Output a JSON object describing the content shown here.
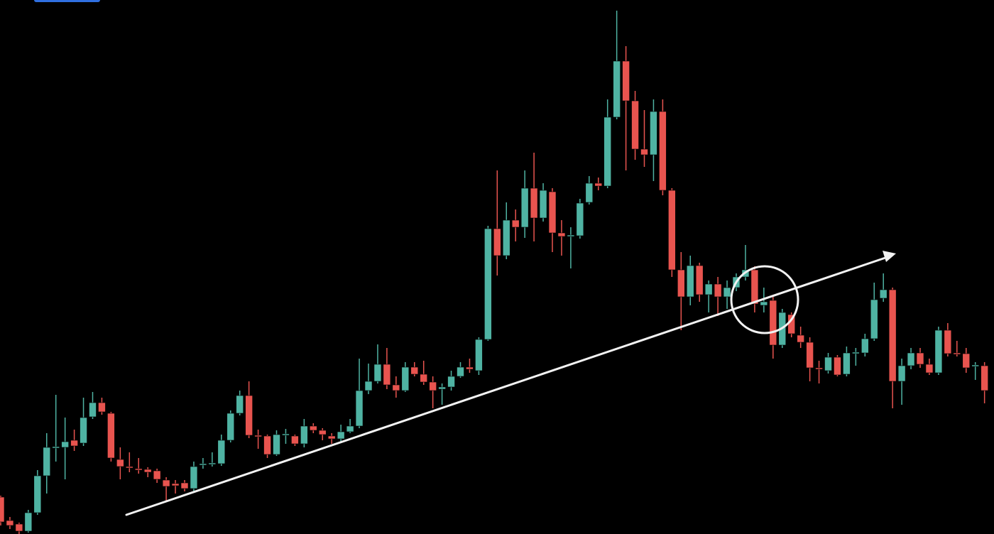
{
  "chart_data": {
    "type": "candlestick",
    "up_color": "#4fb3a3",
    "down_color": "#e8544f",
    "ylim": [
      0,
      752
    ],
    "open": [
      52,
      19,
      14,
      4,
      30,
      82,
      121,
      122,
      132,
      128,
      165,
      185,
      170,
      105,
      95,
      92,
      91,
      89,
      76,
      71,
      72,
      64,
      97,
      98,
      99,
      132,
      170,
      195,
      139,
      138,
      112,
      140,
      138,
      127,
      152,
      146,
      138,
      134,
      144,
      152,
      202,
      215,
      239,
      210,
      202,
      235,
      225,
      214,
      204,
      207,
      222,
      235,
      230,
      274,
      430,
      392,
      442,
      432,
      487,
      445,
      482,
      424,
      419,
      420,
      467,
      494,
      490,
      587,
      666,
      610,
      542,
      534,
      595,
      484,
      372,
      334,
      378,
      337,
      352,
      334,
      347,
      362,
      372,
      322,
      329,
      266,
      309,
      280,
      270,
      234,
      230,
      249,
      225,
      254,
      255,
      275,
      332,
      344,
      215,
      237,
      255,
      239,
      227,
      287,
      255,
      254,
      236,
      237
    ],
    "high": [
      54,
      24,
      16,
      34,
      90,
      142,
      196,
      164,
      147,
      192,
      200,
      192,
      172,
      122,
      115,
      107,
      94,
      92,
      80,
      76,
      76,
      102,
      107,
      115,
      140,
      174,
      202,
      215,
      147,
      140,
      146,
      148,
      140,
      162,
      156,
      149,
      142,
      154,
      162,
      247,
      240,
      267,
      262,
      222,
      242,
      242,
      244,
      222,
      212,
      230,
      242,
      247,
      277,
      434,
      512,
      467,
      457,
      512,
      537,
      494,
      487,
      442,
      432,
      472,
      504,
      502,
      612,
      737,
      687,
      624,
      597,
      612,
      612,
      487,
      397,
      392,
      382,
      357,
      362,
      357,
      367,
      407,
      377,
      347,
      334,
      317,
      312,
      292,
      277,
      244,
      255,
      252,
      264,
      262,
      282,
      354,
      367,
      347,
      247,
      262,
      262,
      247,
      292,
      297,
      272,
      262,
      242,
      242
    ],
    "low": [
      12,
      7,
      0,
      2,
      27,
      57,
      102,
      77,
      117,
      124,
      162,
      168,
      102,
      77,
      87,
      85,
      80,
      72,
      47,
      57,
      60,
      60,
      92,
      95,
      96,
      129,
      167,
      135,
      120,
      107,
      110,
      127,
      124,
      122,
      142,
      132,
      127,
      130,
      142,
      149,
      197,
      212,
      204,
      192,
      200,
      222,
      210,
      177,
      182,
      202,
      220,
      227,
      224,
      272,
      364,
      387,
      412,
      417,
      412,
      440,
      397,
      392,
      374,
      416,
      464,
      484,
      487,
      584,
      512,
      527,
      517,
      497,
      477,
      362,
      287,
      322,
      327,
      312,
      307,
      317,
      342,
      357,
      312,
      312,
      247,
      262,
      277,
      262,
      215,
      212,
      226,
      222,
      222,
      237,
      250,
      272,
      327,
      177,
      182,
      232,
      234,
      224,
      224,
      250,
      250,
      227,
      217,
      184
    ],
    "close": [
      17,
      12,
      4,
      30,
      82,
      122,
      123,
      130,
      124,
      164,
      185,
      172,
      107,
      95,
      93,
      90,
      87,
      77,
      67,
      68,
      64,
      95,
      99,
      100,
      132,
      170,
      195,
      139,
      137,
      112,
      140,
      141,
      127,
      152,
      146,
      140,
      134,
      144,
      152,
      202,
      215,
      239,
      210,
      202,
      235,
      225,
      214,
      202,
      207,
      222,
      235,
      232,
      274,
      430,
      392,
      442,
      432,
      487,
      445,
      484,
      424,
      419,
      421,
      466,
      494,
      490,
      587,
      666,
      610,
      542,
      534,
      595,
      484,
      372,
      334,
      378,
      337,
      352,
      334,
      347,
      362,
      372,
      324,
      327,
      266,
      312,
      282,
      270,
      234,
      232,
      249,
      224,
      255,
      256,
      275,
      330,
      344,
      215,
      237,
      255,
      239,
      227,
      287,
      254,
      253,
      234,
      238,
      202
    ]
  }
}
